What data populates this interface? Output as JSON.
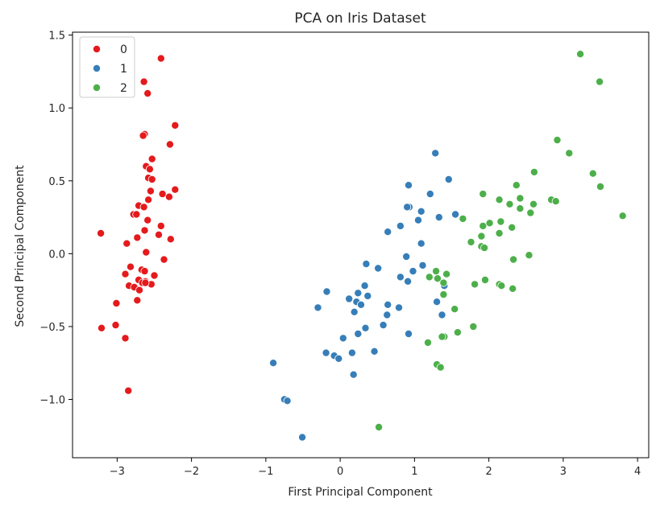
{
  "chart_data": {
    "type": "scatter",
    "title": "PCA on Iris Dataset",
    "xlabel": "First Principal Component",
    "ylabel": "Second Principal Component",
    "xlim": [
      -3.6,
      4.15
    ],
    "ylim": [
      -1.4,
      1.52
    ],
    "xticks": [
      -3,
      -2,
      -1,
      0,
      1,
      2,
      3,
      4
    ],
    "xtick_labels": [
      "−3",
      "−2",
      "−1",
      "0",
      "1",
      "2",
      "3",
      "4"
    ],
    "yticks": [
      -1.0,
      -0.5,
      0.0,
      0.5,
      1.0,
      1.5
    ],
    "ytick_labels": [
      "−1.0",
      "−0.5",
      "0.0",
      "0.5",
      "1.0",
      "1.5"
    ],
    "grid": false,
    "legend_position": "top-left",
    "series": [
      {
        "name": "0",
        "color": "#e41a1c",
        "points": [
          [
            -2.41,
            1.34
          ],
          [
            -2.64,
            1.18
          ],
          [
            -2.59,
            1.1
          ],
          [
            -2.63,
            0.82
          ],
          [
            -2.22,
            0.88
          ],
          [
            -2.29,
            0.75
          ],
          [
            -2.53,
            0.65
          ],
          [
            -2.61,
            0.6
          ],
          [
            -2.56,
            0.58
          ],
          [
            -2.58,
            0.52
          ],
          [
            -2.53,
            0.51
          ],
          [
            -2.55,
            0.43
          ],
          [
            -2.22,
            0.44
          ],
          [
            -2.39,
            0.41
          ],
          [
            -2.3,
            0.39
          ],
          [
            -2.58,
            0.37
          ],
          [
            -2.71,
            0.33
          ],
          [
            -2.64,
            0.32
          ],
          [
            -2.78,
            0.27
          ],
          [
            -2.74,
            0.27
          ],
          [
            -2.59,
            0.23
          ],
          [
            -2.41,
            0.19
          ],
          [
            -2.63,
            0.16
          ],
          [
            -2.28,
            0.1
          ],
          [
            -2.73,
            0.11
          ],
          [
            -2.44,
            0.13
          ],
          [
            -3.22,
            0.14
          ],
          [
            -2.87,
            0.07
          ],
          [
            -2.61,
            0.01
          ],
          [
            -2.37,
            -0.04
          ],
          [
            -2.82,
            -0.09
          ],
          [
            -2.67,
            -0.11
          ],
          [
            -2.63,
            -0.12
          ],
          [
            -2.5,
            -0.15
          ],
          [
            -2.89,
            -0.14
          ],
          [
            -2.71,
            -0.18
          ],
          [
            -2.62,
            -0.19
          ],
          [
            -2.66,
            -0.2
          ],
          [
            -2.54,
            -0.21
          ],
          [
            -2.84,
            -0.22
          ],
          [
            -2.77,
            -0.23
          ],
          [
            -2.7,
            -0.25
          ],
          [
            -2.73,
            -0.32
          ],
          [
            -3.01,
            -0.34
          ],
          [
            -3.21,
            -0.51
          ],
          [
            -3.02,
            -0.49
          ],
          [
            -2.89,
            -0.58
          ],
          [
            -2.85,
            -0.94
          ],
          [
            -2.65,
            0.81
          ],
          [
            -2.62,
            -0.2
          ]
        ]
      },
      {
        "name": "1",
        "color": "#377eb8",
        "points": [
          [
            1.28,
            0.69
          ],
          [
            1.46,
            0.51
          ],
          [
            0.92,
            0.47
          ],
          [
            1.21,
            0.41
          ],
          [
            0.93,
            0.32
          ],
          [
            1.09,
            0.29
          ],
          [
            1.55,
            0.27
          ],
          [
            1.33,
            0.25
          ],
          [
            1.05,
            0.23
          ],
          [
            0.81,
            0.19
          ],
          [
            0.64,
            0.15
          ],
          [
            1.09,
            0.07
          ],
          [
            0.89,
            -0.02
          ],
          [
            0.35,
            -0.07
          ],
          [
            0.51,
            -0.1
          ],
          [
            1.11,
            -0.08
          ],
          [
            0.98,
            -0.12
          ],
          [
            0.81,
            -0.16
          ],
          [
            0.91,
            -0.19
          ],
          [
            0.33,
            -0.22
          ],
          [
            -0.18,
            -0.26
          ],
          [
            0.24,
            -0.27
          ],
          [
            0.64,
            -0.35
          ],
          [
            0.22,
            -0.33
          ],
          [
            0.37,
            -0.29
          ],
          [
            0.12,
            -0.31
          ],
          [
            0.28,
            -0.35
          ],
          [
            0.79,
            -0.37
          ],
          [
            -0.3,
            -0.37
          ],
          [
            0.19,
            -0.4
          ],
          [
            0.63,
            -0.42
          ],
          [
            1.3,
            -0.33
          ],
          [
            1.37,
            -0.42
          ],
          [
            0.58,
            -0.49
          ],
          [
            0.34,
            -0.51
          ],
          [
            0.24,
            -0.55
          ],
          [
            0.92,
            -0.55
          ],
          [
            0.04,
            -0.58
          ],
          [
            -0.19,
            -0.68
          ],
          [
            -0.08,
            -0.7
          ],
          [
            -0.02,
            -0.72
          ],
          [
            0.16,
            -0.68
          ],
          [
            0.46,
            -0.67
          ],
          [
            0.18,
            -0.83
          ],
          [
            -0.9,
            -0.75
          ],
          [
            -0.75,
            -1.0
          ],
          [
            -0.71,
            -1.01
          ],
          [
            -0.51,
            -1.26
          ],
          [
            0.9,
            0.32
          ],
          [
            1.4,
            -0.22
          ]
        ]
      },
      {
        "name": "2",
        "color": "#4daf4a",
        "points": [
          [
            3.23,
            1.37
          ],
          [
            3.49,
            1.18
          ],
          [
            2.92,
            0.78
          ],
          [
            3.08,
            0.69
          ],
          [
            2.61,
            0.56
          ],
          [
            3.4,
            0.55
          ],
          [
            3.5,
            0.46
          ],
          [
            2.37,
            0.47
          ],
          [
            1.92,
            0.41
          ],
          [
            2.42,
            0.38
          ],
          [
            2.14,
            0.37
          ],
          [
            2.84,
            0.37
          ],
          [
            2.9,
            0.36
          ],
          [
            2.6,
            0.34
          ],
          [
            2.28,
            0.34
          ],
          [
            2.42,
            0.31
          ],
          [
            2.56,
            0.28
          ],
          [
            3.8,
            0.26
          ],
          [
            1.65,
            0.24
          ],
          [
            2.16,
            0.22
          ],
          [
            2.01,
            0.21
          ],
          [
            1.92,
            0.19
          ],
          [
            2.31,
            0.18
          ],
          [
            2.14,
            0.14
          ],
          [
            1.9,
            0.12
          ],
          [
            1.76,
            0.08
          ],
          [
            1.9,
            0.05
          ],
          [
            1.94,
            0.04
          ],
          [
            2.54,
            -0.01
          ],
          [
            2.33,
            -0.04
          ],
          [
            1.29,
            -0.12
          ],
          [
            1.43,
            -0.14
          ],
          [
            1.2,
            -0.16
          ],
          [
            1.31,
            -0.17
          ],
          [
            1.95,
            -0.18
          ],
          [
            1.39,
            -0.2
          ],
          [
            1.81,
            -0.21
          ],
          [
            2.14,
            -0.21
          ],
          [
            2.17,
            -0.22
          ],
          [
            2.32,
            -0.24
          ],
          [
            1.39,
            -0.28
          ],
          [
            1.54,
            -0.38
          ],
          [
            1.79,
            -0.5
          ],
          [
            1.58,
            -0.54
          ],
          [
            1.4,
            -0.57
          ],
          [
            1.18,
            -0.61
          ],
          [
            1.3,
            -0.76
          ],
          [
            1.35,
            -0.78
          ],
          [
            0.52,
            -1.19
          ],
          [
            1.37,
            -0.57
          ]
        ]
      }
    ]
  }
}
